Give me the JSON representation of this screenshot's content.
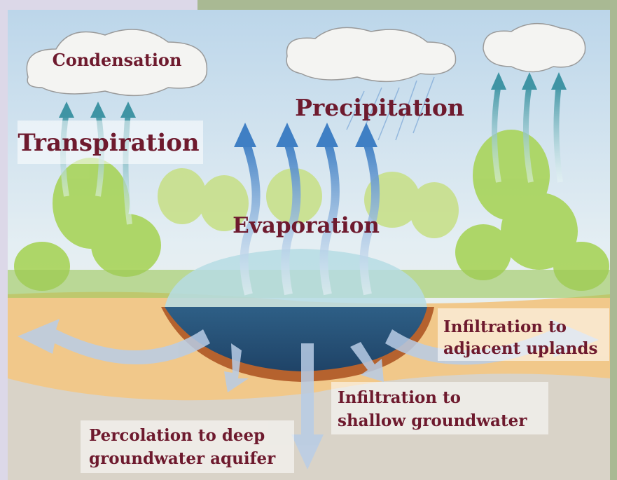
{
  "labels": {
    "condensation": "Condensation",
    "precipitation": "Precipitation",
    "transpiration": "Transpiration",
    "evaporation": "Evaporation",
    "infiltration_uplands": [
      "Infiltration to",
      "adjacent uplands"
    ],
    "infiltration_shallow": [
      "Infiltration to",
      "shallow groundwater"
    ],
    "percolation": [
      "Percolation to deep",
      "groundwater aquifer"
    ]
  }
}
